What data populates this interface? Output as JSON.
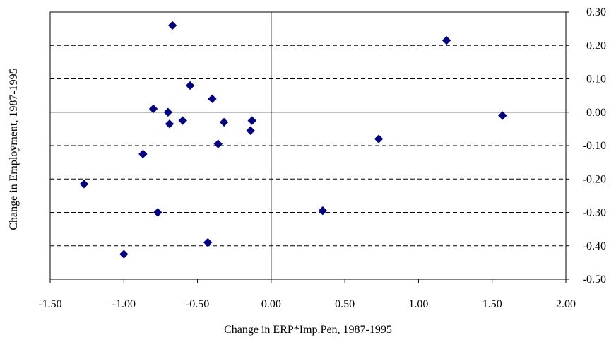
{
  "chart_data": {
    "type": "scatter",
    "title": "",
    "xlabel": "Change in ERP*Imp.Pen, 1987-1995",
    "ylabel": "Change in Employment, 1987-1995",
    "xlim": [
      -1.5,
      2.0
    ],
    "ylim": [
      -0.5,
      0.3
    ],
    "x_ticks": [
      "-1.50",
      "-1.00",
      "-0.50",
      "0.00",
      "0.50",
      "1.00",
      "1.50",
      "2.00"
    ],
    "y_ticks": [
      "0.30",
      "0.20",
      "0.10",
      "0.00",
      "-0.10",
      "-0.20",
      "-0.30",
      "-0.40",
      "-0.50"
    ],
    "grid": "horizontal dashed",
    "marker_color": "#000080",
    "series": [
      {
        "points": [
          {
            "x": -0.67,
            "y": 0.26
          },
          {
            "x": -0.55,
            "y": 0.08
          },
          {
            "x": -0.4,
            "y": 0.04
          },
          {
            "x": -0.8,
            "y": 0.01
          },
          {
            "x": -0.7,
            "y": 0.0
          },
          {
            "x": -0.6,
            "y": -0.025
          },
          {
            "x": -0.69,
            "y": -0.035
          },
          {
            "x": -0.32,
            "y": -0.03
          },
          {
            "x": -0.13,
            "y": -0.025
          },
          {
            "x": -0.14,
            "y": -0.055
          },
          {
            "x": -0.36,
            "y": -0.095
          },
          {
            "x": -0.87,
            "y": -0.125
          },
          {
            "x": -1.27,
            "y": -0.215
          },
          {
            "x": -0.77,
            "y": -0.3
          },
          {
            "x": -0.43,
            "y": -0.39
          },
          {
            "x": -1.0,
            "y": -0.425
          },
          {
            "x": 1.19,
            "y": 0.215
          },
          {
            "x": 1.57,
            "y": -0.01
          },
          {
            "x": 0.73,
            "y": -0.08
          },
          {
            "x": 0.35,
            "y": -0.295
          }
        ]
      }
    ]
  }
}
